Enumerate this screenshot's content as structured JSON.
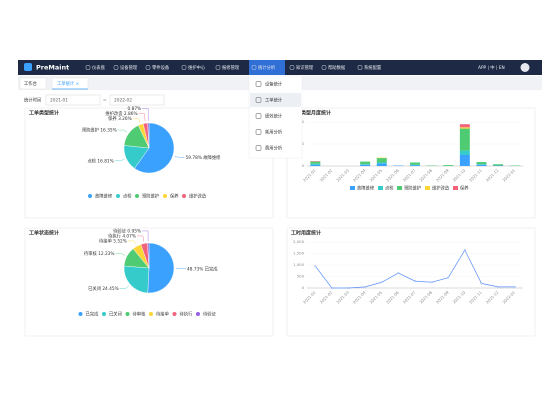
{
  "nav": {
    "brand": "PreMaint",
    "items": [
      "仪表盘",
      "设备管理",
      "零件设备",
      "维护中心",
      "报修管理",
      "统计分析",
      "知识管理",
      "帮助数据",
      "系统配置"
    ],
    "active": 5,
    "right": "APP | 中 | EN"
  },
  "tabs": [
    "工作台",
    "工单统计 ×"
  ],
  "filter": {
    "label": "统计时间",
    "start": "2021-01",
    "separator": "~",
    "end": "2022-02"
  },
  "menu": {
    "items": [
      "设备统计",
      "工单统计",
      "绩效统计",
      "耗用分析",
      "费用分析"
    ],
    "active": 1
  },
  "chart_data": [
    {
      "type": "pie",
      "title": "工单类型统计",
      "categories": [
        "故障维修",
        "点检",
        "预防维护",
        "保养",
        "维护改造",
        null
      ],
      "values": [
        59.78,
        16.81,
        16.35,
        3.26,
        2.86,
        0.87
      ],
      "value_labels": [
        "59.78%",
        "16.81%",
        "16.35%",
        "3.26%",
        "2.86%",
        "0.87%"
      ],
      "colors": [
        "#3ba1ff",
        "#36cbcb",
        "#4ecb73",
        "#fbd437",
        "#f2637b",
        "#975fe5"
      ]
    },
    {
      "type": "bar",
      "stacked": true,
      "title": "工单类型月度统计",
      "categories": [
        "2021-01",
        "2021-02",
        "2021-03",
        "2021-04",
        "2021-05",
        "2021-06",
        "2021-07",
        "2021-08",
        "2021-09",
        "2021-10",
        "2021-11",
        "2021-12",
        "2022-01"
      ],
      "series": [
        {
          "name": "故障维修",
          "color": "#3ba1ff",
          "values": [
            3,
            0,
            0,
            3,
            6,
            1,
            2,
            0,
            0,
            25,
            3,
            1,
            0
          ]
        },
        {
          "name": "点检",
          "color": "#36cbcb",
          "values": [
            2,
            0,
            0,
            1,
            2,
            0,
            1,
            0,
            0,
            10,
            1,
            0,
            0
          ]
        },
        {
          "name": "预防维护",
          "color": "#4ecb73",
          "values": [
            5,
            0,
            0,
            6,
            10,
            0,
            5,
            1,
            2,
            50,
            5,
            3,
            1
          ]
        },
        {
          "name": "维护改造",
          "color": "#fbd437",
          "values": [
            0,
            0,
            0,
            0,
            1,
            0,
            0,
            0,
            0,
            3,
            0,
            0,
            0
          ]
        },
        {
          "name": "保养",
          "color": "#f2637b",
          "values": [
            1,
            0,
            0,
            0,
            0,
            0,
            0,
            0,
            0,
            7,
            0,
            0,
            0
          ]
        }
      ],
      "ylim": [
        0,
        100
      ],
      "yticks": [
        0,
        50,
        100
      ],
      "grid": true
    },
    {
      "type": "pie",
      "title": "工单状态统计",
      "categories": [
        "已完成",
        "已关闭",
        "待审核",
        "待接单",
        "待执行",
        "待验证"
      ],
      "values": [
        48.73,
        24.45,
        12.23,
        5.52,
        4.07,
        0.95
      ],
      "value_labels": [
        "48.73%",
        "24.45%",
        "12.23%",
        "5.52%",
        "4.07%",
        "0.95%"
      ],
      "colors": [
        "#3ba1ff",
        "#36cbcb",
        "#4ecb73",
        "#fbd437",
        "#f2637b",
        "#975fe5"
      ]
    },
    {
      "type": "line",
      "title": "工时用度统计",
      "categories": [
        "2021-01",
        "2021-02",
        "2021-03",
        "2021-04",
        "2021-05",
        "2021-06",
        "2021-07",
        "2021-08",
        "2021-09",
        "2021-10",
        "2021-11",
        "2021-12",
        "2022-01"
      ],
      "values": [
        950,
        0,
        0,
        50,
        250,
        650,
        300,
        250,
        450,
        1650,
        200,
        50,
        50
      ],
      "color": "#5b8ff9",
      "ylim": [
        0,
        2000
      ],
      "yticks": [
        0,
        500,
        {
          "value": 1000,
          "label": "1,000"
        },
        {
          "value": 1500,
          "label": "1,500"
        },
        {
          "value": 2000,
          "label": "2,000"
        }
      ],
      "grid": true
    }
  ]
}
